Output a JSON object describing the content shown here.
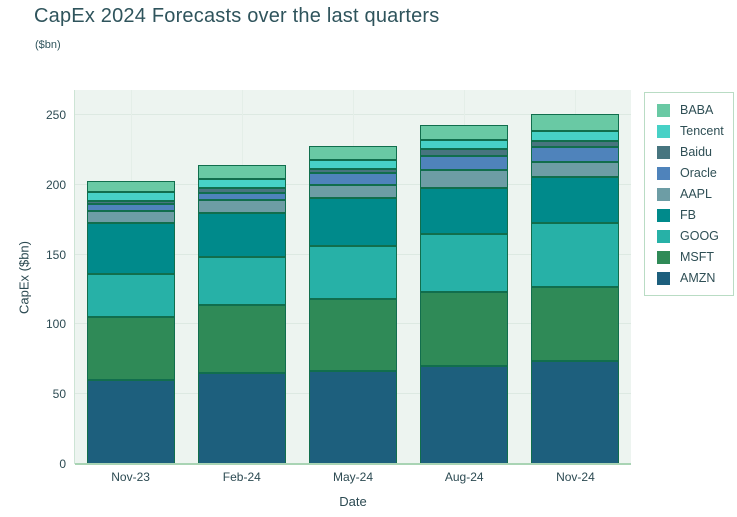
{
  "header": {
    "title": "CapEx 2024 Forecasts over the last quarters",
    "subtitle": "($bn)"
  },
  "chart_data": {
    "type": "bar",
    "stacked": true,
    "title": "CapEx 2024 Forecasts over the last quarters",
    "subtitle": "($bn)",
    "xlabel": "Date",
    "ylabel": "CapEx ($bn)",
    "categories": [
      "Nov-23",
      "Feb-24",
      "May-24",
      "Aug-24",
      "Nov-24"
    ],
    "series": [
      {
        "name": "BABA",
        "color": "#69c9a4",
        "values": [
          8,
          10.5,
          10,
          11,
          12.5
        ]
      },
      {
        "name": "Tencent",
        "color": "#47d1c6",
        "values": [
          6.5,
          6.5,
          6.5,
          6.5,
          7
        ]
      },
      {
        "name": "Baidu",
        "color": "#47757f",
        "values": [
          2,
          3.5,
          3,
          4.5,
          4
        ]
      },
      {
        "name": "Oracle",
        "color": "#4f83bb",
        "values": [
          5,
          4.5,
          8.5,
          10.5,
          11
        ]
      },
      {
        "name": "AAPL",
        "color": "#6d9da5",
        "values": [
          8.5,
          9.5,
          9.5,
          13,
          10.5
        ]
      },
      {
        "name": "FB",
        "color": "#008a8b",
        "values": [
          36.5,
          31.5,
          34.5,
          32.5,
          33.5
        ]
      },
      {
        "name": "GOOG",
        "color": "#27b1a7",
        "values": [
          31.5,
          34.5,
          38,
          42,
          46
        ]
      },
      {
        "name": "MSFT",
        "color": "#2f8a57",
        "values": [
          45,
          49,
          51,
          52.5,
          53
        ]
      },
      {
        "name": "AMZN",
        "color": "#1d5f7d",
        "values": [
          60,
          65,
          67,
          70.5,
          73.5
        ]
      }
    ],
    "stack_order_bottom_to_top": [
      "AMZN",
      "MSFT",
      "GOOG",
      "FB",
      "AAPL",
      "Oracle",
      "Baidu",
      "Tencent",
      "BABA"
    ],
    "totals": [
      203,
      214.5,
      228,
      243,
      251
    ],
    "y_ticks": [
      0,
      50,
      100,
      150,
      200,
      250
    ],
    "ylim": [
      0,
      268
    ],
    "grid": true,
    "legend_position": "right",
    "colors": {
      "plot_background": "#edf4f0",
      "axis_line": "#a9d4b4",
      "segment_border": "#116e4d",
      "title_text": "#2f545c",
      "tick_text": "#2c4a52",
      "legend_border": "#b9dcc4"
    }
  }
}
